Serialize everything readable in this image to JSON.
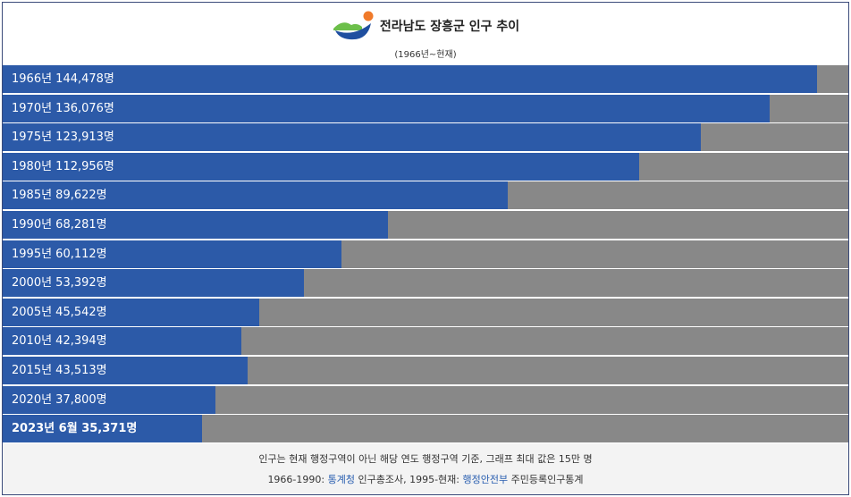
{
  "header": {
    "title": "전라남도 장흥군 인구 추이",
    "subtitle": "(1966년~현재)"
  },
  "chart_data": {
    "type": "bar",
    "title": "전라남도 장흥군 인구 추이",
    "subtitle": "(1966년~현재)",
    "xlim": [
      0,
      150000
    ],
    "categories": [
      "1966년",
      "1970년",
      "1975년",
      "1980년",
      "1985년",
      "1990년",
      "1995년",
      "2000년",
      "2005년",
      "2010년",
      "2015년",
      "2020년",
      "2023년 6월"
    ],
    "values": [
      144478,
      136076,
      123913,
      112956,
      89622,
      68281,
      60112,
      53392,
      45542,
      42394,
      43513,
      37800,
      35371
    ],
    "labels": [
      "1966년 144,478명",
      "1970년 136,076명",
      "1975년 123,913명",
      "1980년 112,956명",
      "1985년 89,622명",
      "1990년 68,281명",
      "1995년 60,112명",
      "2000년 53,392명",
      "2005년 45,542명",
      "2010년 42,394명",
      "2015년 43,513명",
      "2020년 37,800명",
      "2023년 6월 35,371명"
    ],
    "bold_last": true
  },
  "colors": {
    "bar": "#2c5aa8",
    "track": "#888888",
    "link": "#2a5fb0"
  },
  "footer": {
    "note": "인구는 현재 행정구역이 아닌 해당 연도 행정구역 기준, 그래프 최대 값은 15만 명",
    "source_prefix": "1966-1990: ",
    "source_link1": "통계청",
    "source_mid": " 인구총조사, 1995-현재: ",
    "source_link2": "행정안전부",
    "source_suffix": " 주민등록인구통계"
  }
}
